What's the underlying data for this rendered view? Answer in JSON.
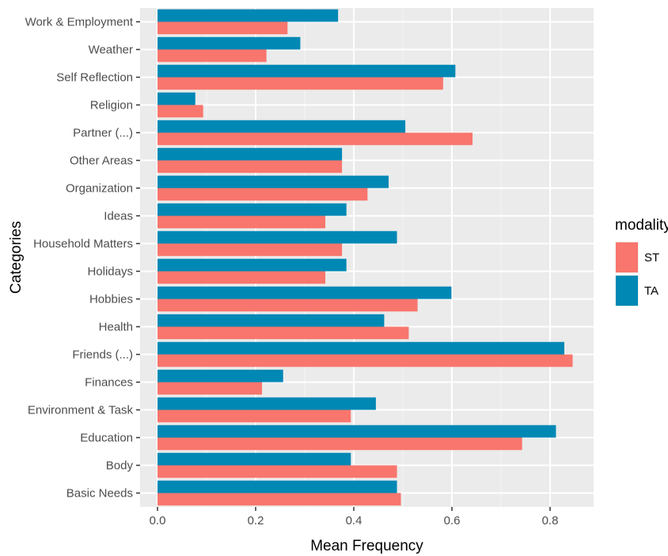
{
  "chart_data": {
    "type": "bar",
    "orientation": "horizontal",
    "xlabel": "Mean Frequency",
    "ylabel": "Categories",
    "xlim": [
      0,
      0.85
    ],
    "x_ticks": [
      "0.0",
      "0.2",
      "0.4",
      "0.6",
      "0.8"
    ],
    "grid": true,
    "legend_position": "right",
    "legend_title": "modality",
    "categories": [
      "Work & Employment",
      "Weather",
      "Self Reflection",
      "Religion",
      "Partner (...)",
      "Other Areas",
      "Organization",
      "Ideas",
      "Household Matters",
      "Holidays",
      "Hobbies",
      "Health",
      "Friends (...)",
      "Finances",
      "Environment & Task",
      "Education",
      "Body",
      "Basic Needs"
    ],
    "series": [
      {
        "name": "ST",
        "color": "#F8766D",
        "values": [
          0.265,
          0.222,
          0.582,
          0.093,
          0.642,
          0.376,
          0.428,
          0.342,
          0.376,
          0.342,
          0.53,
          0.512,
          0.846,
          0.213,
          0.394,
          0.743,
          0.488,
          0.496
        ]
      },
      {
        "name": "TA",
        "color": "#0088B5",
        "values": [
          0.368,
          0.291,
          0.607,
          0.077,
          0.505,
          0.376,
          0.471,
          0.385,
          0.488,
          0.385,
          0.599,
          0.462,
          0.829,
          0.256,
          0.445,
          0.812,
          0.394,
          0.488
        ]
      }
    ]
  }
}
